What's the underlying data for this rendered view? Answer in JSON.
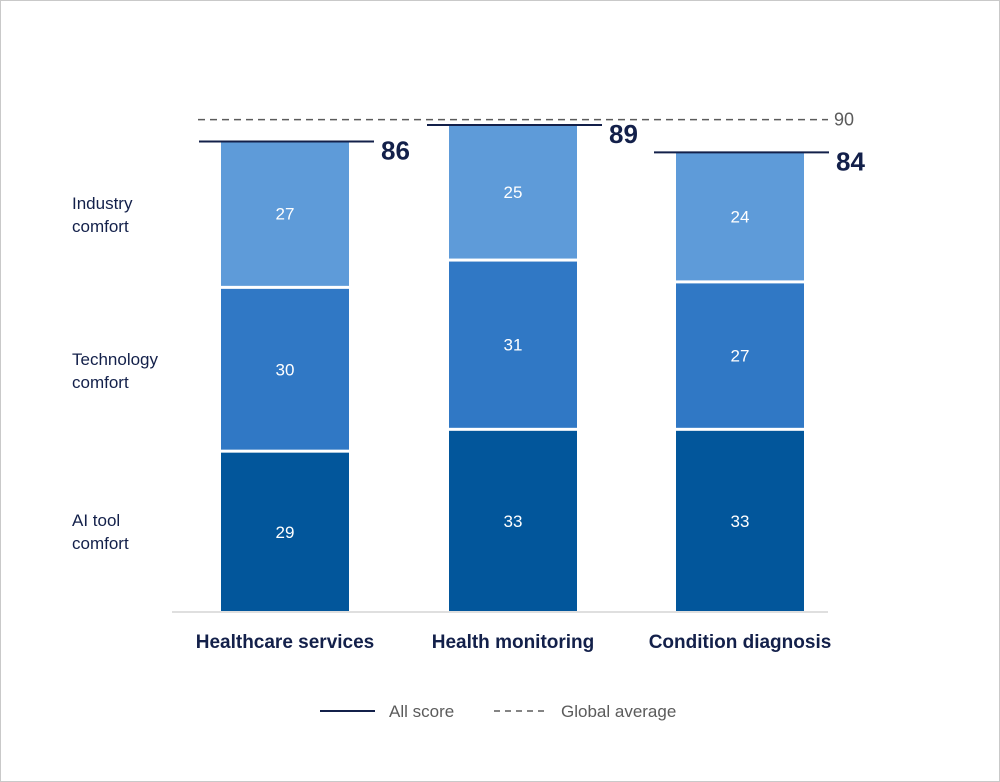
{
  "chart_data": {
    "type": "bar",
    "stacked": true,
    "categories": [
      "Healthcare services",
      "Health monitoring",
      "Condition diagnosis"
    ],
    "series": [
      {
        "name": "AI tool comfort",
        "values": [
          29,
          33,
          33
        ],
        "color": "#02569b"
      },
      {
        "name": "Technology comfort",
        "values": [
          30,
          31,
          27
        ],
        "color": "#3078c5"
      },
      {
        "name": "Industry comfort",
        "values": [
          27,
          25,
          24
        ],
        "color": "#5e9bd9"
      }
    ],
    "row_labels": [
      [
        "AI tool",
        "comfort"
      ],
      [
        "Technology",
        "comfort"
      ],
      [
        "Industry",
        "comfort"
      ]
    ],
    "totals": [
      86,
      89,
      84
    ],
    "global_average": 90,
    "legend": {
      "all_score": "All score",
      "global_average": "Global average"
    },
    "ylim": [
      0,
      90
    ],
    "grid": false,
    "colors": {
      "line": "#13204a",
      "dashed": "#5b5b5b",
      "axis": "#bfbfbf"
    }
  }
}
